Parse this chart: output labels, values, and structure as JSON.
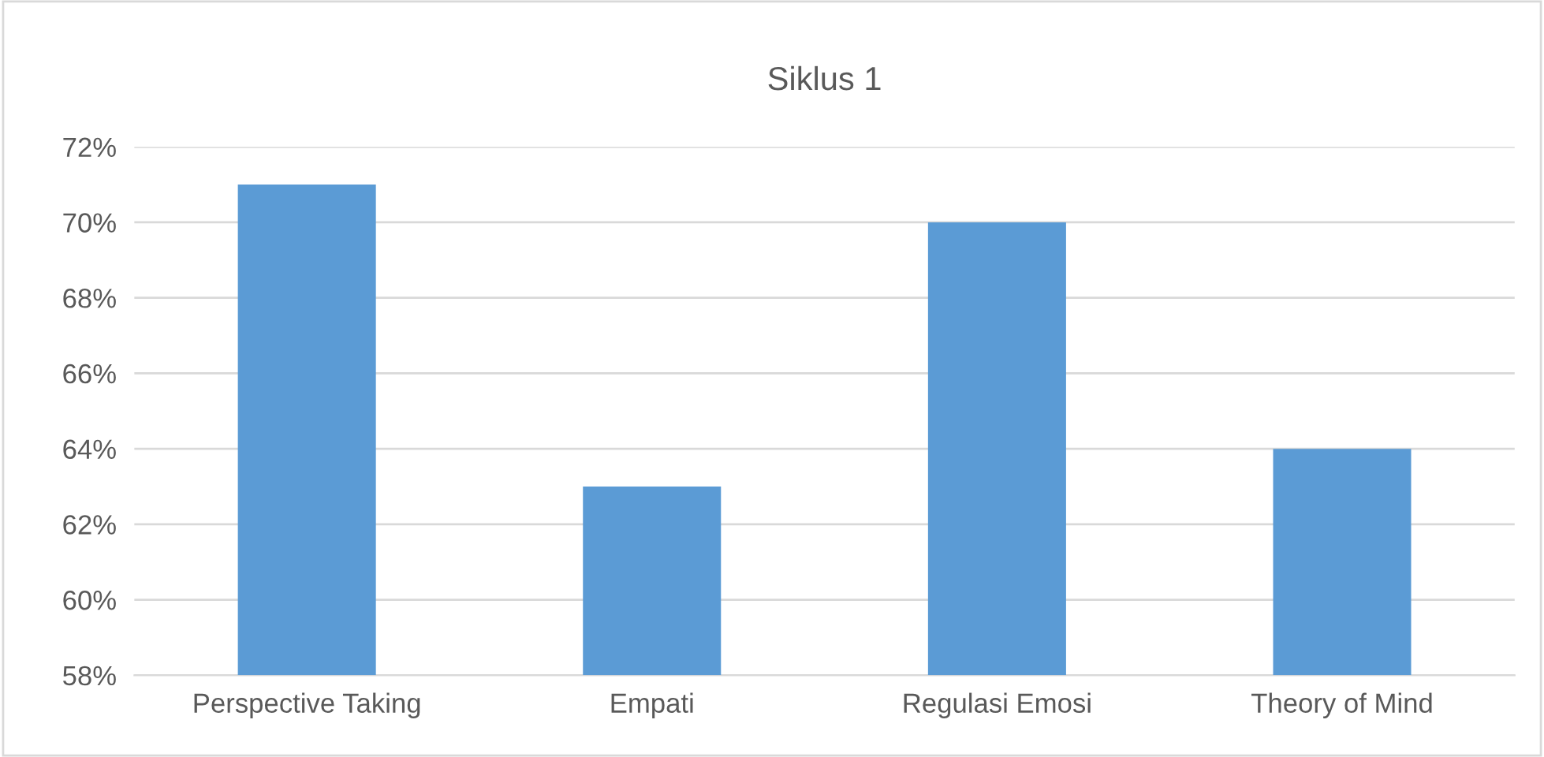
{
  "chart_data": {
    "type": "bar",
    "title": "Siklus 1",
    "categories": [
      "Perspective Taking",
      "Empati",
      "Regulasi Emosi",
      "Theory of Mind"
    ],
    "values": [
      71,
      63,
      70,
      64
    ],
    "color": "#5b9bd5",
    "ylim": [
      58,
      72
    ],
    "yticks": [
      {
        "value": 58,
        "label": "58%"
      },
      {
        "value": 60,
        "label": "60%"
      },
      {
        "value": 62,
        "label": "62%"
      },
      {
        "value": 64,
        "label": "64%"
      },
      {
        "value": 66,
        "label": "66%"
      },
      {
        "value": 68,
        "label": "68%"
      },
      {
        "value": 70,
        "label": "70%"
      },
      {
        "value": 72,
        "label": "72%"
      }
    ],
    "grid": "y",
    "legend": false
  }
}
